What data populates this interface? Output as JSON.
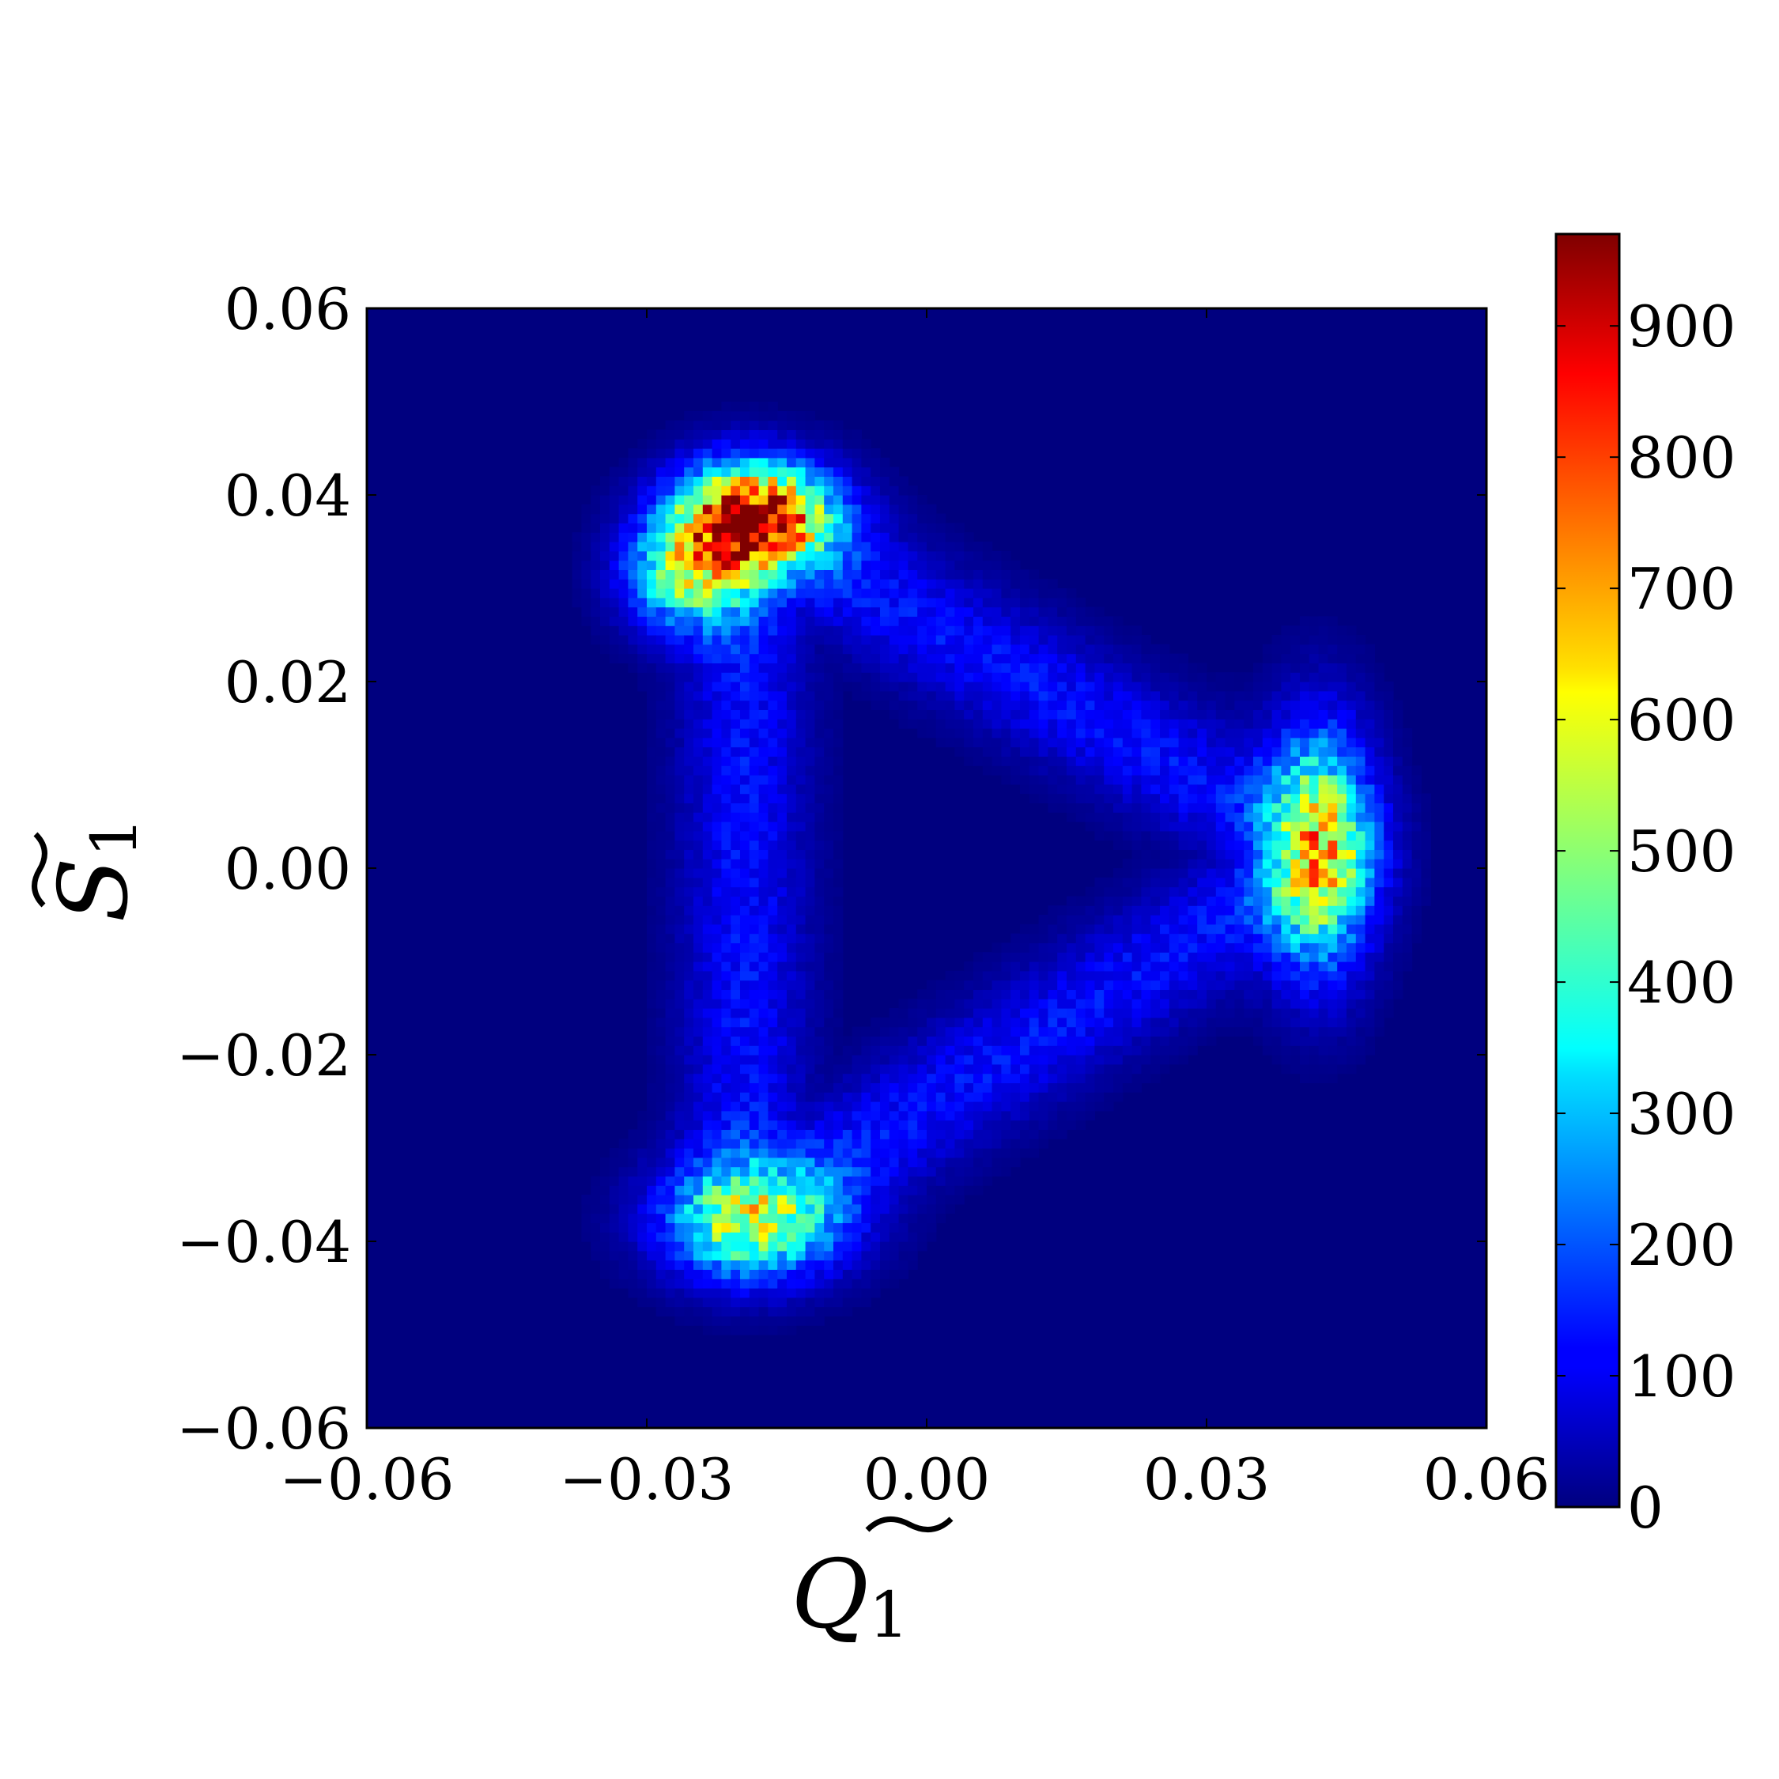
{
  "chart_data": {
    "type": "heatmap",
    "title": "",
    "xlabel": {
      "base": "Q",
      "subscript": "1",
      "tilde": true
    },
    "ylabel": {
      "base": "S",
      "subscript": "1",
      "tilde": true
    },
    "xlim": [
      -0.06,
      0.06
    ],
    "ylim": [
      -0.06,
      0.06
    ],
    "xticks": [
      -0.06,
      -0.03,
      0.0,
      0.03,
      0.06
    ],
    "xticklabels": [
      "−0.06",
      "−0.03",
      "0.00",
      "0.03",
      "0.06"
    ],
    "yticks": [
      -0.06,
      -0.04,
      -0.02,
      0.0,
      0.02,
      0.04,
      0.06
    ],
    "yticklabels": [
      "−0.06",
      "−0.04",
      "−0.02",
      "0.00",
      "0.02",
      "0.04",
      "0.06"
    ],
    "bins": 120,
    "grid": false,
    "colormap": "jet",
    "colorbar": {
      "range": [
        0,
        970
      ],
      "ticks": [
        0,
        100,
        200,
        300,
        400,
        500,
        600,
        700,
        800,
        900
      ],
      "ticklabels": [
        "0",
        "100",
        "200",
        "300",
        "400",
        "500",
        "600",
        "700",
        "800",
        "900"
      ]
    },
    "density_description": "Triangular ring of counts centred near the origin with three hot spots",
    "clusters": [
      {
        "x": -0.0185,
        "y": 0.0375,
        "sx": 0.0055,
        "sy": 0.0038,
        "peak": 880
      },
      {
        "x": -0.0255,
        "y": 0.0315,
        "sx": 0.0045,
        "sy": 0.004,
        "peak": 440
      },
      {
        "x": 0.042,
        "y": 0.002,
        "sx": 0.0038,
        "sy": 0.0085,
        "peak": 560
      },
      {
        "x": -0.0185,
        "y": -0.0375,
        "sx": 0.0065,
        "sy": 0.0042,
        "peak": 460
      }
    ],
    "ring": {
      "vertices": [
        [
          -0.0195,
          0.0375
        ],
        [
          0.043,
          0.0015
        ],
        [
          -0.0195,
          -0.0375
        ]
      ],
      "width": 0.0045,
      "level": 130
    }
  }
}
